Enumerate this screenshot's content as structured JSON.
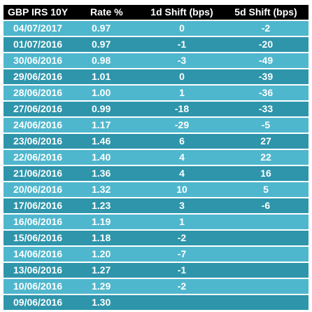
{
  "colors": {
    "header_bg": "#000000",
    "row_light": "#4fb7cd",
    "row_dark": "#2e95ab",
    "text": "#ffffff"
  },
  "table": {
    "headers": [
      "GBP IRS 10Y",
      "Rate %",
      "1d Shift (bps)",
      "5d Shift (bps)"
    ],
    "rows": [
      [
        "04/07/2017",
        "0.97",
        "0",
        "-2"
      ],
      [
        "01/07/2016",
        "0.97",
        "-1",
        "-20"
      ],
      [
        "30/06/2016",
        "0.98",
        "-3",
        "-49"
      ],
      [
        "29/06/2016",
        "1.01",
        "0",
        "-39"
      ],
      [
        "28/06/2016",
        "1.00",
        "1",
        "-36"
      ],
      [
        "27/06/2016",
        "0.99",
        "-18",
        "-33"
      ],
      [
        "24/06/2016",
        "1.17",
        "-29",
        "-5"
      ],
      [
        "23/06/2016",
        "1.46",
        "6",
        "27"
      ],
      [
        "22/06/2016",
        "1.40",
        "4",
        "22"
      ],
      [
        "21/06/2016",
        "1.36",
        "4",
        "16"
      ],
      [
        "20/06/2016",
        "1.32",
        "10",
        "5"
      ],
      [
        "17/06/2016",
        "1.23",
        "3",
        "-6"
      ],
      [
        "16/06/2016",
        "1.19",
        "1",
        ""
      ],
      [
        "15/06/2016",
        "1.18",
        "-2",
        ""
      ],
      [
        "14/06/2016",
        "1.20",
        "-7",
        ""
      ],
      [
        "13/06/2016",
        "1.27",
        "-1",
        ""
      ],
      [
        "10/06/2016",
        "1.29",
        "-2",
        ""
      ],
      [
        "09/06/2016",
        "1.30",
        "",
        ""
      ]
    ]
  }
}
